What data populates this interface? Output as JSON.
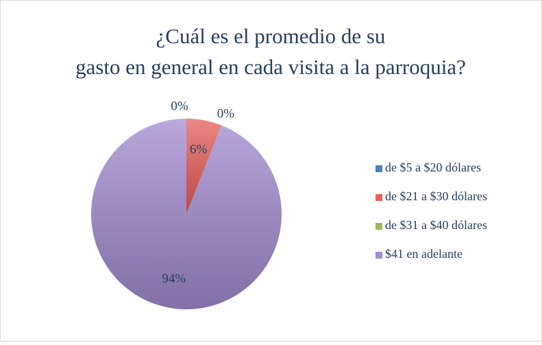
{
  "chart_data": {
    "type": "pie",
    "title": "¿Cuál es el promedio de su gasto en general en cada visita a la parroquia?",
    "categories": [
      "de $5 a $20 dólares",
      "de $21 a $30 dólares",
      "de $31 a $40 dólares",
      "$41 en adelante"
    ],
    "values": [
      0,
      6,
      0,
      94
    ],
    "value_labels": [
      "0%",
      "6%",
      "0%",
      "94%"
    ],
    "colors": [
      "#4f81bd",
      "#e8605c",
      "#9bbb59",
      "#a48cd2"
    ],
    "legend": "right"
  }
}
